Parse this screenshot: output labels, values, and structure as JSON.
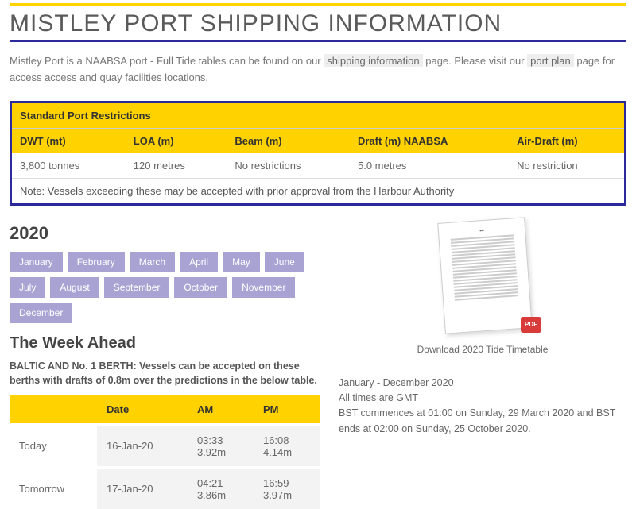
{
  "page_title": "MISTLEY PORT SHIPPING INFORMATION",
  "intro": {
    "pre": "Mistley Port is a NAABSA port - Full Tide tables can be found on our ",
    "link1": "shipping information",
    "mid": " page. Please visit our ",
    "link2": "port plan",
    "post": " page for access access and quay facilities locations."
  },
  "restrictions": {
    "title": "Standard Port Restrictions",
    "headers": [
      "DWT (mt)",
      "LOA (m)",
      "Beam (m)",
      "Draft (m) NAABSA",
      "Air-Draft (m)"
    ],
    "values": [
      "3,800 tonnes",
      "120 metres",
      "No restrictions",
      "5.0 metres",
      "No restriction"
    ],
    "note": "Note: Vessels exceeding these may be accepted with prior approval  from the Harbour Authority"
  },
  "year": "2020",
  "months": [
    "January",
    "February",
    "March",
    "April",
    "May",
    "June",
    "July",
    "August",
    "September",
    "October",
    "November",
    "December"
  ],
  "week": {
    "heading": "The Week Ahead",
    "note": "BALTIC AND No. 1 BERTH: Vessels can be accepted on these berths with drafts of 0.8m over the predictions in the below table.",
    "headers": [
      "",
      "Date",
      "AM",
      "PM"
    ],
    "rows": [
      {
        "label": "Today",
        "date": "16-Jan-20",
        "am_t": "03:33",
        "am_h": "3.92m",
        "pm_t": "16:08",
        "pm_h": "4.14m"
      },
      {
        "label": "Tomorrow",
        "date": "17-Jan-20",
        "am_t": "04:21",
        "am_h": "3.86m",
        "pm_t": "16:59",
        "pm_h": "3.97m"
      }
    ]
  },
  "download": {
    "caption": "Download 2020 Tide Timetable",
    "badge": "PDF"
  },
  "rightinfo": {
    "l1": "January - December 2020",
    "l2": "All times are GMT",
    "l3": "BST commences at 01:00 on Sunday, 29 March 2020 and BST ends at 02:00 on Sunday, 25 October 2020."
  },
  "colors": {
    "yellow": "#ffd200",
    "blue": "#2c2a9b",
    "monthbtn": "#a9a3d4"
  }
}
